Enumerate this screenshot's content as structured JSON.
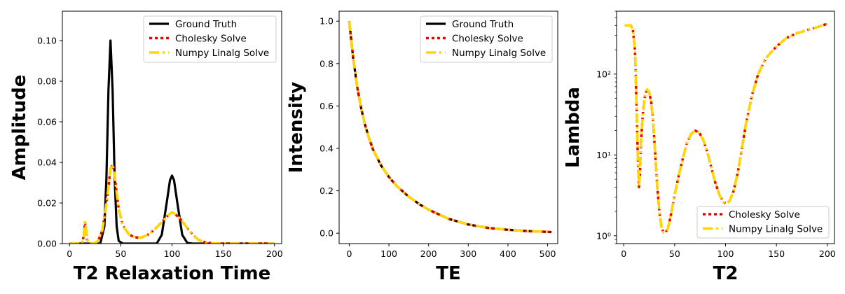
{
  "chart_data": [
    {
      "type": "line",
      "xlabel": "T2 Relaxation Time",
      "ylabel": "Amplitude",
      "xlim": [
        -7,
        207
      ],
      "ylim": [
        0,
        0.1145
      ],
      "xticks": [
        0,
        50,
        100,
        150,
        200
      ],
      "xtick_labels": [
        "0",
        "50",
        "100",
        "150",
        "200"
      ],
      "yticks": [
        0,
        0.02,
        0.04,
        0.06,
        0.08,
        0.1
      ],
      "ytick_labels": [
        "0.00",
        "0.02",
        "0.04",
        "0.06",
        "0.08",
        "0.10"
      ],
      "legend_position": "top-right",
      "series": [
        {
          "name": "Ground Truth",
          "color": "#000000",
          "style": "solid",
          "x": [
            0,
            30,
            34,
            36,
            38,
            40,
            42,
            44,
            46,
            48,
            52,
            85,
            90,
            95,
            98,
            100,
            102,
            105,
            110,
            115,
            120,
            200
          ],
          "y": [
            0,
            0,
            0.0085,
            0.0325,
            0.0757,
            0.1,
            0.0757,
            0.0325,
            0.0085,
            0.0013,
            0,
            0,
            0.0043,
            0.0208,
            0.0312,
            0.0335,
            0.0312,
            0.0208,
            0.0043,
            0.0003,
            0,
            0
          ]
        },
        {
          "name": "Cholesky Solve",
          "color": "#ee0000",
          "style": "dotted",
          "x": [
            0,
            12,
            14,
            15,
            16,
            17,
            19,
            24,
            28,
            32,
            35,
            38,
            40,
            42,
            44,
            46,
            48,
            52,
            58,
            64,
            70,
            76,
            82,
            88,
            94,
            98,
            100,
            102,
            106,
            110,
            114,
            120,
            126,
            134,
            145,
            200
          ],
          "y": [
            0,
            0,
            0.004,
            0.0105,
            0.008,
            0.002,
            0,
            0,
            0.0015,
            0.0065,
            0.016,
            0.028,
            0.037,
            0.039,
            0.034,
            0.025,
            0.017,
            0.009,
            0.0045,
            0.003,
            0.003,
            0.0042,
            0.0065,
            0.0095,
            0.0128,
            0.0148,
            0.0153,
            0.015,
            0.0132,
            0.011,
            0.0082,
            0.0045,
            0.0018,
            0.0004,
            0,
            0
          ]
        },
        {
          "name": "Numpy Linalg Solve",
          "color": "#ffd700",
          "style": "dashdot",
          "x": [
            0,
            12,
            14,
            15,
            16,
            17,
            19,
            24,
            28,
            32,
            35,
            38,
            40,
            42,
            44,
            46,
            48,
            52,
            58,
            64,
            70,
            76,
            82,
            88,
            94,
            98,
            100,
            102,
            106,
            110,
            114,
            120,
            126,
            134,
            145,
            200
          ],
          "y": [
            0,
            0,
            0.004,
            0.0105,
            0.008,
            0.002,
            0,
            0,
            0.0015,
            0.0065,
            0.016,
            0.028,
            0.037,
            0.039,
            0.034,
            0.025,
            0.017,
            0.009,
            0.0045,
            0.003,
            0.003,
            0.0042,
            0.0065,
            0.0095,
            0.0128,
            0.0148,
            0.0153,
            0.015,
            0.0132,
            0.011,
            0.0082,
            0.0045,
            0.0018,
            0.0004,
            0,
            0
          ]
        }
      ]
    },
    {
      "type": "line",
      "xlabel": "TE",
      "ylabel": "Intensity",
      "xlim": [
        -25.5,
        525.5
      ],
      "ylim": [
        -0.049,
        1.047
      ],
      "xticks": [
        0,
        100,
        200,
        300,
        400,
        500
      ],
      "xtick_labels": [
        "0",
        "100",
        "200",
        "300",
        "400",
        "500"
      ],
      "yticks": [
        0,
        0.2,
        0.4,
        0.6,
        0.8,
        1.0
      ],
      "ytick_labels": [
        "0.0",
        "0.2",
        "0.4",
        "0.6",
        "0.8",
        "1.0"
      ],
      "legend_position": "top-right",
      "series": [
        {
          "name": "Ground Truth",
          "color": "#000000",
          "style": "solid",
          "x": [
            0,
            10,
            20,
            30,
            40,
            50,
            60,
            80,
            100,
            120,
            150,
            180,
            200,
            250,
            300,
            350,
            400,
            450,
            500,
            510
          ],
          "y": [
            1.0,
            0.825,
            0.69,
            0.59,
            0.51,
            0.447,
            0.395,
            0.32,
            0.265,
            0.222,
            0.172,
            0.133,
            0.111,
            0.068,
            0.041,
            0.025,
            0.016,
            0.01,
            0.006,
            0.005
          ]
        },
        {
          "name": "Cholesky Solve",
          "color": "#ee0000",
          "style": "dotted",
          "x": [
            0,
            10,
            20,
            30,
            40,
            50,
            60,
            80,
            100,
            120,
            150,
            180,
            200,
            250,
            300,
            350,
            400,
            450,
            500,
            510
          ],
          "y": [
            1.0,
            0.825,
            0.69,
            0.59,
            0.51,
            0.447,
            0.395,
            0.32,
            0.265,
            0.222,
            0.172,
            0.133,
            0.111,
            0.068,
            0.041,
            0.025,
            0.016,
            0.01,
            0.006,
            0.005
          ]
        },
        {
          "name": "Numpy Linalg Solve",
          "color": "#ffd700",
          "style": "dashdot",
          "x": [
            0,
            10,
            20,
            30,
            40,
            50,
            60,
            80,
            100,
            120,
            150,
            180,
            200,
            250,
            300,
            350,
            400,
            450,
            500,
            510
          ],
          "y": [
            1.0,
            0.825,
            0.69,
            0.59,
            0.51,
            0.447,
            0.395,
            0.32,
            0.265,
            0.222,
            0.172,
            0.133,
            0.111,
            0.068,
            0.041,
            0.025,
            0.016,
            0.01,
            0.006,
            0.005
          ]
        }
      ]
    },
    {
      "type": "line",
      "xlabel": "T2",
      "ylabel": "Lambda",
      "xscale": "linear",
      "yscale": "log",
      "xlim": [
        -7,
        207
      ],
      "ylim": [
        0.8,
        600
      ],
      "xticks": [
        0,
        50,
        100,
        150,
        200
      ],
      "xtick_labels": [
        "0",
        "50",
        "100",
        "150",
        "200"
      ],
      "yticks": [
        1,
        10,
        100
      ],
      "ytick_labels": [
        "10⁰",
        "10¹",
        "10²"
      ],
      "legend_position": "bottom-right",
      "series": [
        {
          "name": "Cholesky Solve",
          "color": "#ee0000",
          "style": "dotted",
          "x": [
            1,
            4,
            7,
            9,
            11,
            12,
            13,
            14,
            15,
            16,
            17,
            19,
            21,
            23,
            25,
            27,
            29,
            31,
            33,
            35,
            37,
            39,
            41,
            43,
            45,
            47,
            50,
            54,
            58,
            62,
            66,
            70,
            74,
            78,
            82,
            86,
            90,
            94,
            98,
            101,
            104,
            108,
            112,
            116,
            120,
            126,
            132,
            140,
            150,
            160,
            170,
            180,
            190,
            200
          ],
          "y": [
            400,
            400,
            400,
            350,
            200,
            80,
            25,
            8,
            4,
            6,
            15,
            35,
            55,
            65,
            60,
            45,
            25,
            10,
            4,
            2,
            1.3,
            1.1,
            1.1,
            1.2,
            1.5,
            2,
            3.2,
            5.5,
            9,
            14,
            18,
            20,
            19,
            15.5,
            11,
            7,
            4.5,
            3.2,
            2.6,
            2.5,
            2.7,
            3.6,
            6,
            12,
            24,
            55,
            100,
            160,
            220,
            280,
            320,
            350,
            380,
            420
          ]
        },
        {
          "name": "Numpy Linalg Solve",
          "color": "#ffd700",
          "style": "dashdot",
          "x": [
            1,
            4,
            7,
            9,
            11,
            12,
            13,
            14,
            15,
            16,
            17,
            19,
            21,
            23,
            25,
            27,
            29,
            31,
            33,
            35,
            37,
            39,
            41,
            43,
            45,
            47,
            50,
            54,
            58,
            62,
            66,
            70,
            74,
            78,
            82,
            86,
            90,
            94,
            98,
            101,
            104,
            108,
            112,
            116,
            120,
            126,
            132,
            140,
            150,
            160,
            170,
            180,
            190,
            200
          ],
          "y": [
            400,
            400,
            400,
            350,
            200,
            80,
            25,
            8,
            4,
            6,
            15,
            35,
            55,
            65,
            60,
            45,
            25,
            10,
            4,
            2,
            1.3,
            1.1,
            1.1,
            1.2,
            1.5,
            2,
            3.2,
            5.5,
            9,
            14,
            18,
            20,
            19,
            15.5,
            11,
            7,
            4.5,
            3.2,
            2.6,
            2.5,
            2.7,
            3.6,
            6,
            12,
            24,
            55,
            100,
            160,
            220,
            280,
            320,
            350,
            380,
            420
          ]
        }
      ]
    }
  ]
}
